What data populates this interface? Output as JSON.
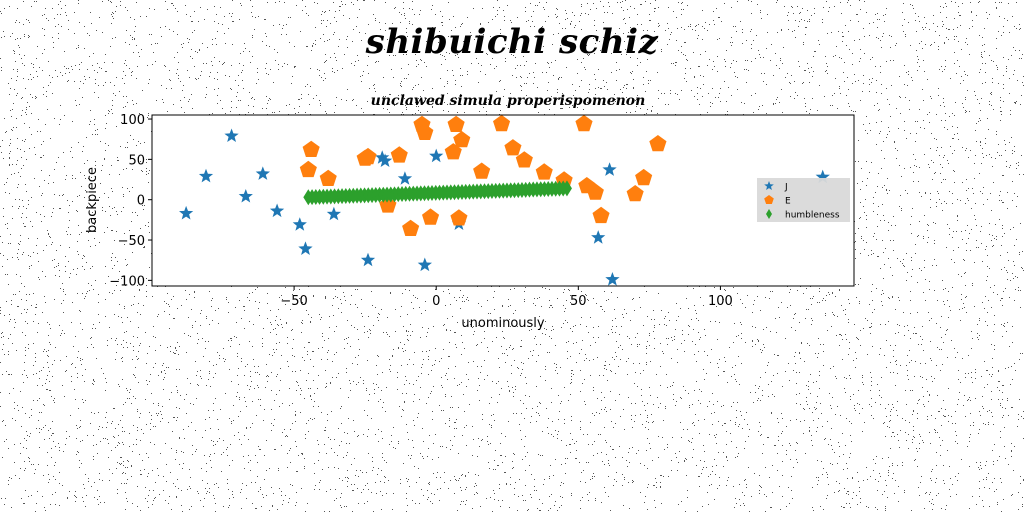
{
  "figure": {
    "suptitle": "shibuichi schiz"
  },
  "chart_data": {
    "type": "scatter",
    "title": "unclawed simula properispomenon",
    "xlabel": "unominously",
    "ylabel": "backpiece",
    "xlim": [
      -100,
      147
    ],
    "ylim": [
      -107,
      105
    ],
    "xticks": [
      -50,
      0,
      50,
      100
    ],
    "yticks": [
      -100,
      -50,
      0,
      50,
      100
    ],
    "xtick_labels": [
      "−50",
      "0",
      "50",
      "100"
    ],
    "ytick_labels": [
      "−100",
      "−50",
      "0",
      "50",
      "100"
    ],
    "grid": false,
    "legend_position": "center-right",
    "series": [
      {
        "name": "J",
        "marker": "star",
        "color": "#1f77b4",
        "points": [
          [
            -88,
            -17
          ],
          [
            -81,
            29
          ],
          [
            -72,
            79
          ],
          [
            -67,
            4
          ],
          [
            -61,
            32
          ],
          [
            -56,
            -14
          ],
          [
            -48,
            -31
          ],
          [
            -46,
            -61
          ],
          [
            -36,
            -18
          ],
          [
            -24,
            -75
          ],
          [
            -19,
            52
          ],
          [
            -18,
            48
          ],
          [
            -11,
            26
          ],
          [
            -4,
            -81
          ],
          [
            0,
            54
          ],
          [
            8,
            -30
          ],
          [
            57,
            -47
          ],
          [
            61,
            37
          ],
          [
            62,
            -99
          ],
          [
            136,
            28
          ]
        ]
      },
      {
        "name": "E",
        "marker": "pentagon",
        "color": "#ff7f0e",
        "points": [
          [
            -44,
            62
          ],
          [
            -45,
            37
          ],
          [
            -38,
            26
          ],
          [
            -25,
            51
          ],
          [
            -24,
            53
          ],
          [
            -17,
            -7
          ],
          [
            -13,
            55
          ],
          [
            -9,
            -36
          ],
          [
            -5,
            93
          ],
          [
            -4,
            83
          ],
          [
            -2,
            -22
          ],
          [
            6,
            59
          ],
          [
            7,
            93
          ],
          [
            8,
            -23
          ],
          [
            9,
            74
          ],
          [
            16,
            35
          ],
          [
            23,
            94
          ],
          [
            27,
            64
          ],
          [
            31,
            49
          ],
          [
            38,
            34
          ],
          [
            45,
            24
          ],
          [
            52,
            94
          ],
          [
            53,
            17
          ],
          [
            56,
            9
          ],
          [
            58,
            -20
          ],
          [
            70,
            7
          ],
          [
            73,
            27
          ],
          [
            78,
            69
          ]
        ]
      },
      {
        "name": "humbleness",
        "marker": "thin_diamond",
        "color": "#2ca02c",
        "line": {
          "x0": -45,
          "y0": 3,
          "x1": 46,
          "y1": 14,
          "count": 70
        }
      }
    ]
  },
  "colors": {
    "legend_bg": "#d9d9d9",
    "axes_edge": "#000000"
  }
}
